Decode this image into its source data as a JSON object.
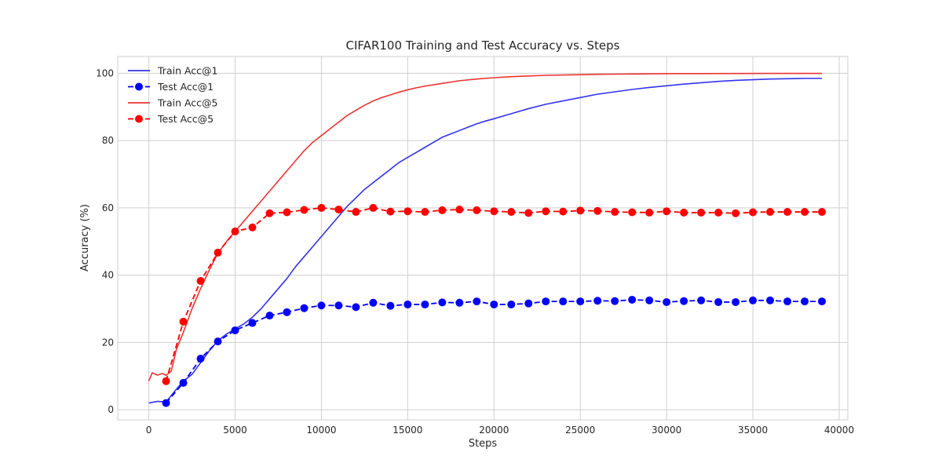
{
  "chart_data": {
    "type": "line",
    "title": "CIFAR100 Training and Test Accuracy vs. Steps",
    "xlabel": "Steps",
    "ylabel": "Accuracy (%)",
    "xlim": [
      -1800,
      40500
    ],
    "ylim": [
      -3,
      105
    ],
    "xticks": [
      0,
      5000,
      10000,
      15000,
      20000,
      25000,
      30000,
      35000,
      40000
    ],
    "xtick_labels": [
      "0",
      "5000",
      "10000",
      "15000",
      "20000",
      "25000",
      "30000",
      "35000",
      "40000"
    ],
    "yticks": [
      0,
      20,
      40,
      60,
      80,
      100
    ],
    "ytick_labels": [
      "0",
      "20",
      "40",
      "60",
      "80",
      "100"
    ],
    "grid": true,
    "legend": "upper-left",
    "series": [
      {
        "name": "Train Acc@1",
        "color": "#3333ee",
        "style": "solid",
        "markers": false,
        "x": [
          0,
          500,
          1000,
          1500,
          2000,
          2500,
          3000,
          3500,
          4000,
          4500,
          5000,
          5500,
          6000,
          6500,
          7000,
          7500,
          8000,
          8500,
          9000,
          9500,
          10000,
          10500,
          11000,
          11500,
          12000,
          12500,
          13000,
          13500,
          14000,
          14500,
          15000,
          15500,
          16000,
          16500,
          17000,
          17500,
          18000,
          18500,
          19000,
          19500,
          20000,
          21000,
          22000,
          23000,
          24000,
          25000,
          26000,
          27000,
          28000,
          29000,
          30000,
          31000,
          32000,
          33000,
          34000,
          35000,
          36000,
          37000,
          38000,
          39000
        ],
        "values": [
          2.0,
          2.5,
          2.3,
          5.5,
          8.5,
          10.5,
          14.0,
          17.5,
          20.5,
          22.5,
          24.0,
          25.5,
          27.5,
          30.0,
          33.0,
          36.0,
          39.0,
          42.5,
          45.5,
          48.5,
          51.5,
          54.5,
          57.5,
          60.5,
          63.0,
          65.5,
          67.5,
          69.5,
          71.5,
          73.5,
          75.0,
          76.5,
          78.0,
          79.5,
          81.0,
          82.0,
          83.0,
          84.0,
          85.0,
          85.8,
          86.5,
          88.0,
          89.5,
          90.8,
          91.8,
          92.8,
          93.8,
          94.5,
          95.2,
          95.8,
          96.3,
          96.8,
          97.2,
          97.6,
          97.9,
          98.1,
          98.3,
          98.4,
          98.5,
          98.5
        ]
      },
      {
        "name": "Test Acc@1",
        "color": "#0000ff",
        "style": "dashed",
        "markers": true,
        "x": [
          1000,
          2000,
          3000,
          4000,
          5000,
          6000,
          7000,
          8000,
          9000,
          10000,
          11000,
          12000,
          13000,
          14000,
          15000,
          16000,
          17000,
          18000,
          19000,
          20000,
          21000,
          22000,
          23000,
          24000,
          25000,
          26000,
          27000,
          28000,
          29000,
          30000,
          31000,
          32000,
          33000,
          34000,
          35000,
          36000,
          37000,
          38000,
          39000
        ],
        "values": [
          2.0,
          8.0,
          15.2,
          20.3,
          23.6,
          25.8,
          28.0,
          29.0,
          30.2,
          31.0,
          31.0,
          30.5,
          31.8,
          30.9,
          31.3,
          31.3,
          31.9,
          31.8,
          32.2,
          31.3,
          31.3,
          31.6,
          32.2,
          32.2,
          32.2,
          32.4,
          32.3,
          32.7,
          32.5,
          32.0,
          32.3,
          32.5,
          32.0,
          32.0,
          32.5,
          32.5,
          32.2,
          32.2,
          32.2
        ]
      },
      {
        "name": "Train Acc@5",
        "color": "#ee3333",
        "style": "solid",
        "markers": false,
        "x": [
          0,
          200,
          500,
          800,
          1000,
          1300,
          1600,
          2000,
          2500,
          3000,
          3500,
          4000,
          4500,
          5000,
          5500,
          6000,
          6500,
          7000,
          7500,
          8000,
          8500,
          9000,
          9500,
          10000,
          10500,
          11000,
          11500,
          12000,
          12500,
          13000,
          13500,
          14000,
          14500,
          15000,
          15500,
          16000,
          17000,
          18000,
          19000,
          20000,
          21000,
          22000,
          23000,
          24000,
          25000,
          26000,
          27000,
          28000,
          29000,
          30000,
          32000,
          34000,
          36000,
          39000
        ],
        "values": [
          8.5,
          11.0,
          10.3,
          10.8,
          10.2,
          11.5,
          18.0,
          23.0,
          30.0,
          36.0,
          41.5,
          46.5,
          50.0,
          53.0,
          56.0,
          59.0,
          62.0,
          65.0,
          68.0,
          71.0,
          74.0,
          77.0,
          79.5,
          81.5,
          83.5,
          85.5,
          87.5,
          89.0,
          90.5,
          91.8,
          92.8,
          93.6,
          94.4,
          95.1,
          95.7,
          96.2,
          97.0,
          97.8,
          98.3,
          98.7,
          99.0,
          99.2,
          99.4,
          99.5,
          99.6,
          99.7,
          99.75,
          99.8,
          99.85,
          99.9,
          99.92,
          99.94,
          99.96,
          99.97
        ]
      },
      {
        "name": "Test Acc@5",
        "color": "#ff0000",
        "style": "dashed",
        "markers": true,
        "x": [
          1000,
          2000,
          3000,
          4000,
          5000,
          6000,
          7000,
          8000,
          9000,
          10000,
          11000,
          12000,
          13000,
          14000,
          15000,
          16000,
          17000,
          18000,
          19000,
          20000,
          21000,
          22000,
          23000,
          24000,
          25000,
          26000,
          27000,
          28000,
          29000,
          30000,
          31000,
          32000,
          33000,
          34000,
          35000,
          36000,
          37000,
          38000,
          39000
        ],
        "values": [
          8.5,
          26.2,
          38.3,
          46.7,
          53.0,
          54.2,
          58.4,
          58.7,
          59.4,
          60.0,
          59.5,
          58.8,
          60.0,
          58.9,
          59.0,
          58.8,
          59.3,
          59.5,
          59.3,
          59.0,
          58.8,
          58.5,
          59.0,
          58.9,
          59.2,
          59.1,
          58.8,
          58.7,
          58.6,
          59.0,
          58.6,
          58.6,
          58.6,
          58.4,
          58.7,
          58.8,
          58.8,
          58.8,
          58.8
        ]
      }
    ]
  }
}
